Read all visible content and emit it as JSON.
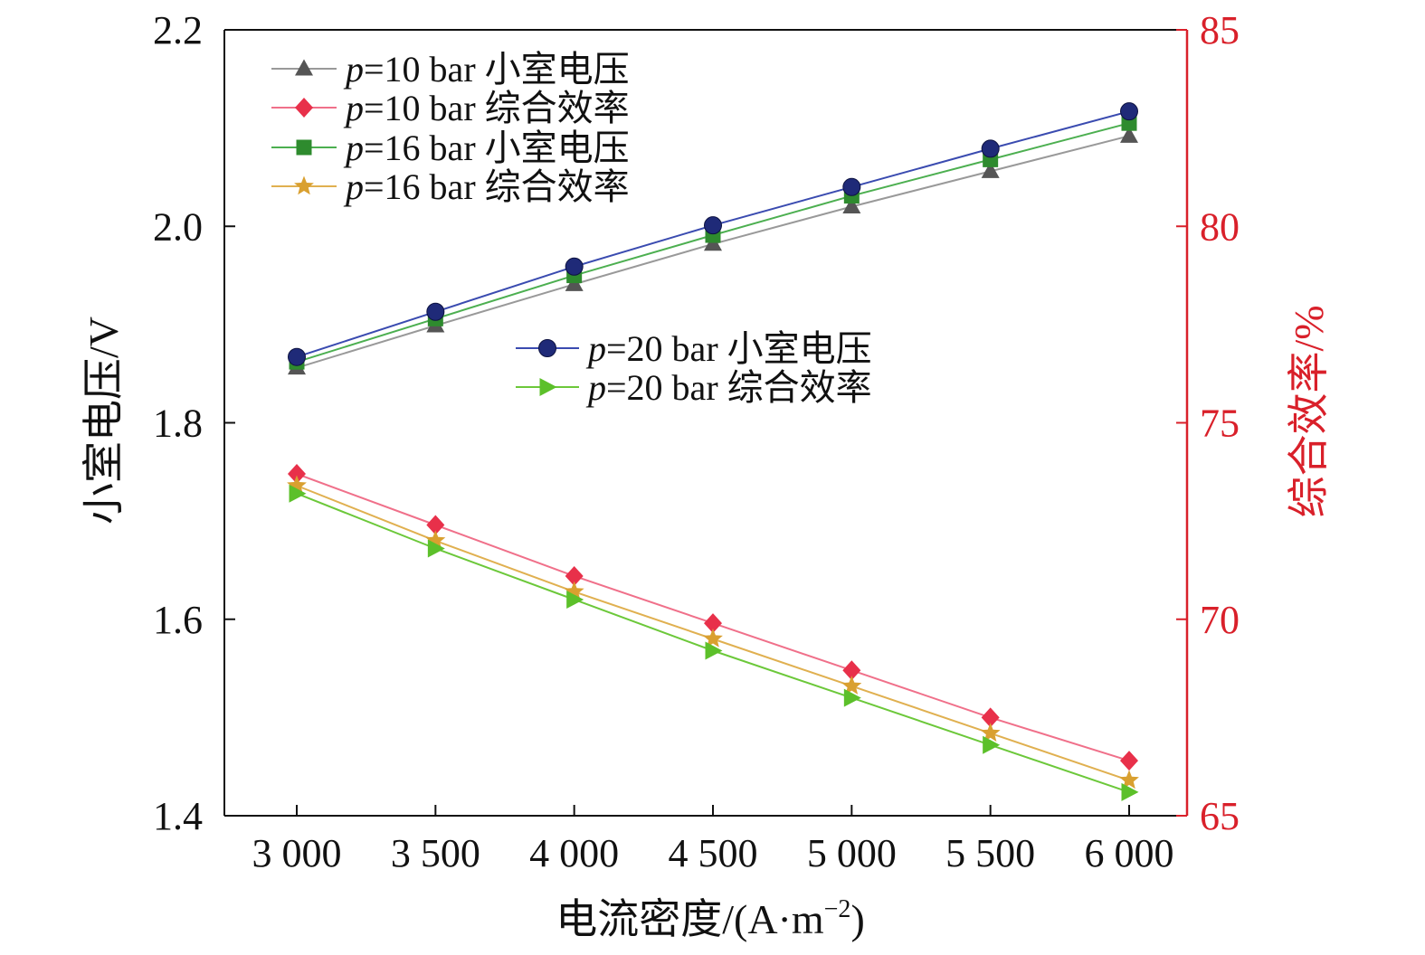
{
  "chart_data": {
    "type": "line",
    "x": [
      3000,
      3500,
      4000,
      4500,
      5000,
      5500,
      6000
    ],
    "x_tick_labels": [
      "3 000",
      "3 500",
      "4 000",
      "4 500",
      "5 000",
      "5 500",
      "6 000"
    ],
    "xlabel_main": "电流密度/(A·m",
    "xlabel_sup": "−2",
    "xlabel_tail": ")",
    "ylabel_left": "小室电压/V",
    "ylabel_right": "综合效率/%",
    "ylim_left": [
      1.4,
      2.2
    ],
    "ylim_right": [
      65,
      85
    ],
    "yticks_left": [
      "1.4",
      "1.6",
      "1.8",
      "2.0",
      "2.2"
    ],
    "yticks_right": [
      "65",
      "70",
      "75",
      "80",
      "85"
    ],
    "right_axis_color": "#d9202a",
    "grid": false,
    "legend_placement": "top-left and center",
    "series": [
      {
        "p": "p",
        "name": "=10 bar 小室电压",
        "axis": "left",
        "marker": "triangle-up",
        "marker_color": "#555555",
        "line_color": "#999999",
        "values": [
          1.856,
          1.899,
          1.941,
          1.982,
          2.02,
          2.056,
          2.092
        ]
      },
      {
        "p": "p",
        "name": "=10 bar 综合效率",
        "axis": "right",
        "marker": "diamond",
        "marker_color": "#e8304a",
        "line_color": "#f0708a",
        "values": [
          73.7,
          72.4,
          71.1,
          69.9,
          68.7,
          67.5,
          66.4
        ]
      },
      {
        "p": "p",
        "name": "=16 bar 小室电压",
        "axis": "left",
        "marker": "square",
        "marker_color": "#2e8b2e",
        "line_color": "#4caf50",
        "values": [
          1.862,
          1.906,
          1.95,
          1.991,
          2.031,
          2.068,
          2.105
        ]
      },
      {
        "p": "p",
        "name": "=16 bar 综合效率",
        "axis": "right",
        "marker": "star",
        "marker_color": "#d9a030",
        "line_color": "#e0b050",
        "values": [
          73.4,
          72.0,
          70.7,
          69.5,
          68.3,
          67.1,
          65.9
        ]
      },
      {
        "p": "p",
        "name": "=20 bar 小室电压",
        "axis": "left",
        "marker": "circle",
        "marker_color": "#1f2a78",
        "line_color": "#3a4bb0",
        "values": [
          1.867,
          1.913,
          1.959,
          2.001,
          2.04,
          2.079,
          2.117
        ]
      },
      {
        "p": "p",
        "name": "=20 bar 综合效率",
        "axis": "right",
        "marker": "triangle-right",
        "marker_color": "#5cc02a",
        "line_color": "#6cc83a",
        "values": [
          73.2,
          71.8,
          70.5,
          69.2,
          68.0,
          66.8,
          65.6
        ]
      }
    ]
  }
}
